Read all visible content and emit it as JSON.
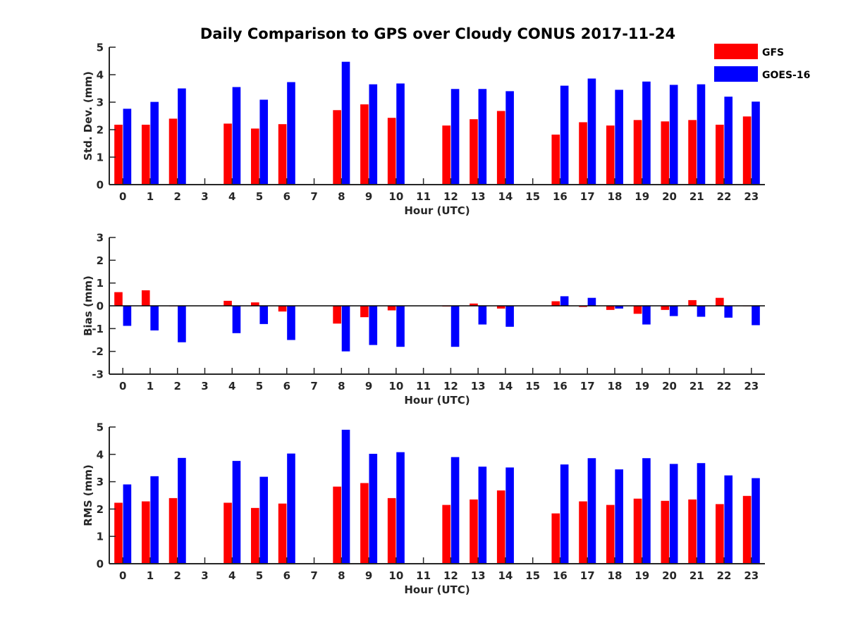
{
  "title": "Daily Comparison to GPS over Cloudy CONUS 2017-11-24",
  "colors": {
    "GFS": "#ff0000",
    "GOES-16": "#0000ff",
    "axis": "#262626"
  },
  "chart_data": [
    {
      "type": "bar",
      "panel": "top",
      "xlabel": "Hour (UTC)",
      "ylabel": "Std. Dev. (mm)",
      "ylim": [
        0,
        5
      ],
      "yticks": [
        0,
        1,
        2,
        3,
        4,
        5
      ],
      "categories": [
        "0",
        "1",
        "2",
        "3",
        "4",
        "5",
        "6",
        "7",
        "8",
        "9",
        "10",
        "11",
        "12",
        "13",
        "14",
        "15",
        "16",
        "17",
        "18",
        "19",
        "20",
        "21",
        "22",
        "23"
      ],
      "legend_position": "top-right",
      "series": [
        {
          "name": "GFS",
          "values": [
            2.18,
            2.18,
            2.4,
            null,
            2.22,
            2.04,
            2.2,
            null,
            2.71,
            2.92,
            2.43,
            null,
            2.15,
            2.38,
            2.68,
            null,
            1.82,
            2.27,
            2.15,
            2.35,
            2.3,
            2.35,
            2.18,
            2.48
          ]
        },
        {
          "name": "GOES-16",
          "values": [
            2.76,
            3.01,
            3.5,
            null,
            3.55,
            3.09,
            3.73,
            null,
            4.47,
            3.65,
            3.68,
            null,
            3.48,
            3.48,
            3.4,
            null,
            3.6,
            3.86,
            3.45,
            3.75,
            3.63,
            3.65,
            3.2,
            3.02
          ]
        }
      ]
    },
    {
      "type": "bar",
      "panel": "middle",
      "xlabel": "Hour (UTC)",
      "ylabel": "Bias (mm)",
      "ylim": [
        -3,
        3
      ],
      "yticks": [
        -3,
        -2,
        -1,
        0,
        1,
        2,
        3
      ],
      "categories": [
        "0",
        "1",
        "2",
        "3",
        "4",
        "5",
        "6",
        "7",
        "8",
        "9",
        "10",
        "11",
        "12",
        "13",
        "14",
        "15",
        "16",
        "17",
        "18",
        "19",
        "20",
        "21",
        "22",
        "23"
      ],
      "series": [
        {
          "name": "GFS",
          "values": [
            0.6,
            0.68,
            -0.02,
            null,
            0.22,
            0.15,
            -0.25,
            null,
            -0.78,
            -0.5,
            -0.2,
            null,
            -0.03,
            0.1,
            -0.12,
            null,
            0.2,
            -0.05,
            -0.18,
            -0.35,
            -0.18,
            0.25,
            0.35,
            0.0
          ]
        },
        {
          "name": "GOES-16",
          "values": [
            -0.88,
            -1.08,
            -1.6,
            null,
            -1.2,
            -0.8,
            -1.5,
            null,
            -2.0,
            -1.72,
            -1.8,
            null,
            -1.8,
            -0.82,
            -0.92,
            null,
            0.42,
            0.35,
            -0.12,
            -0.82,
            -0.45,
            -0.48,
            -0.52,
            -0.85
          ]
        }
      ]
    },
    {
      "type": "bar",
      "panel": "bottom",
      "xlabel": "Hour (UTC)",
      "ylabel": "RMS (mm)",
      "ylim": [
        0,
        5
      ],
      "yticks": [
        0,
        1,
        2,
        3,
        4,
        5
      ],
      "categories": [
        "0",
        "1",
        "2",
        "3",
        "4",
        "5",
        "6",
        "7",
        "8",
        "9",
        "10",
        "11",
        "12",
        "13",
        "14",
        "15",
        "16",
        "17",
        "18",
        "19",
        "20",
        "21",
        "22",
        "23"
      ],
      "series": [
        {
          "name": "GFS",
          "values": [
            2.23,
            2.28,
            2.4,
            null,
            2.23,
            2.04,
            2.2,
            null,
            2.82,
            2.95,
            2.4,
            null,
            2.15,
            2.35,
            2.68,
            null,
            1.84,
            2.28,
            2.15,
            2.38,
            2.3,
            2.35,
            2.18,
            2.48
          ]
        },
        {
          "name": "GOES-16",
          "values": [
            2.9,
            3.2,
            3.87,
            null,
            3.76,
            3.18,
            4.03,
            null,
            4.9,
            4.02,
            4.08,
            null,
            3.9,
            3.55,
            3.52,
            null,
            3.63,
            3.86,
            3.45,
            3.86,
            3.65,
            3.68,
            3.23,
            3.13
          ]
        }
      ]
    }
  ]
}
